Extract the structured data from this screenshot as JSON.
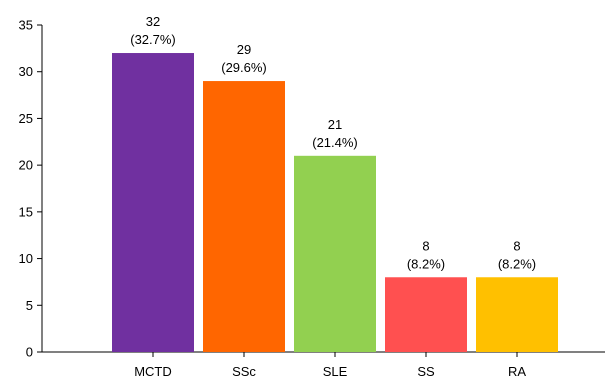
{
  "chart_data": {
    "type": "bar",
    "title": "",
    "xlabel": "",
    "ylabel": "",
    "ylim": [
      0,
      35
    ],
    "yticks": [
      0,
      5,
      10,
      15,
      20,
      25,
      30,
      35
    ],
    "grid": false,
    "legend": "none",
    "categories": [
      "MCTD",
      "SSc",
      "SLE",
      "SS",
      "RA"
    ],
    "values": [
      32,
      29,
      21,
      8,
      8
    ],
    "percent_labels": [
      "(32.7%)",
      "(29.6%)",
      "(21.4%)",
      "(8.2%)",
      "(8.2%)"
    ],
    "colors": [
      "#7030A0",
      "#FF6600",
      "#92D050",
      "#FF5050",
      "#FFC000"
    ]
  }
}
